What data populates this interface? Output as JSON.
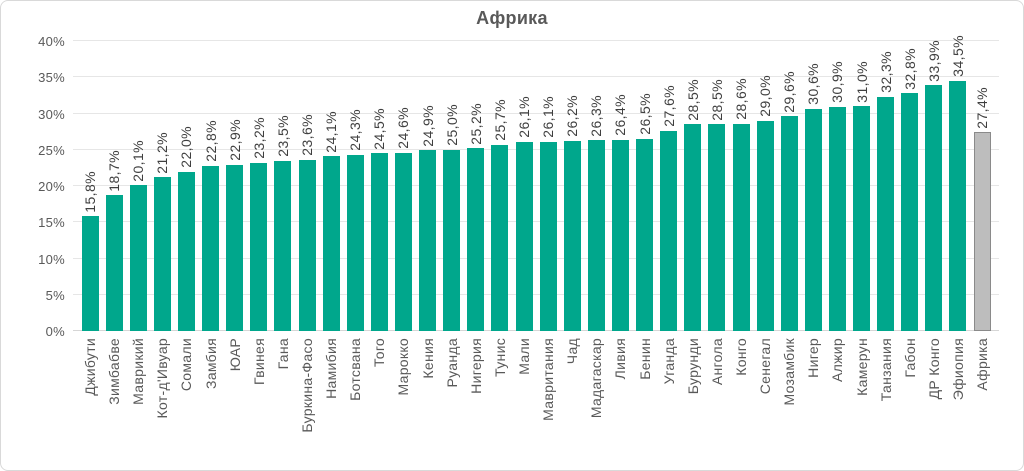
{
  "chart_data": {
    "type": "bar",
    "title": "Африка",
    "xlabel": "",
    "ylabel": "",
    "ylim": [
      0,
      40
    ],
    "grid": true,
    "legend": false,
    "yticks": [
      {
        "value": 0,
        "label": "0%"
      },
      {
        "value": 5,
        "label": "5%"
      },
      {
        "value": 10,
        "label": "10%"
      },
      {
        "value": 15,
        "label": "15%"
      },
      {
        "value": 20,
        "label": "20%"
      },
      {
        "value": 25,
        "label": "25%"
      },
      {
        "value": 30,
        "label": "30%"
      },
      {
        "value": 35,
        "label": "35%"
      },
      {
        "value": 40,
        "label": "40%"
      }
    ],
    "points": [
      {
        "category": "Джибути",
        "value": 15.8,
        "label": "15,8%",
        "kind": "country"
      },
      {
        "category": "Зимбабве",
        "value": 18.7,
        "label": "18,7%",
        "kind": "country"
      },
      {
        "category": "Маврикий",
        "value": 20.1,
        "label": "20,1%",
        "kind": "country"
      },
      {
        "category": "Кот-д'Ивуар",
        "value": 21.2,
        "label": "21,2%",
        "kind": "country"
      },
      {
        "category": "Сомали",
        "value": 22.0,
        "label": "22,0%",
        "kind": "country"
      },
      {
        "category": "Замбия",
        "value": 22.8,
        "label": "22,8%",
        "kind": "country"
      },
      {
        "category": "ЮАР",
        "value": 22.9,
        "label": "22,9%",
        "kind": "country"
      },
      {
        "category": "Гвинея",
        "value": 23.2,
        "label": "23,2%",
        "kind": "country"
      },
      {
        "category": "Гана",
        "value": 23.5,
        "label": "23,5%",
        "kind": "country"
      },
      {
        "category": "Буркина-Фасо",
        "value": 23.6,
        "label": "23,6%",
        "kind": "country"
      },
      {
        "category": "Намибия",
        "value": 24.1,
        "label": "24,1%",
        "kind": "country"
      },
      {
        "category": "Ботсвана",
        "value": 24.3,
        "label": "24,3%",
        "kind": "country"
      },
      {
        "category": "Того",
        "value": 24.5,
        "label": "24,5%",
        "kind": "country"
      },
      {
        "category": "Марокко",
        "value": 24.6,
        "label": "24,6%",
        "kind": "country"
      },
      {
        "category": "Кения",
        "value": 24.9,
        "label": "24,9%",
        "kind": "country"
      },
      {
        "category": "Руанда",
        "value": 25.0,
        "label": "25,0%",
        "kind": "country"
      },
      {
        "category": "Нигерия",
        "value": 25.2,
        "label": "25,2%",
        "kind": "country"
      },
      {
        "category": "Тунис",
        "value": 25.7,
        "label": "25,7%",
        "kind": "country"
      },
      {
        "category": "Мали",
        "value": 26.1,
        "label": "26,1%",
        "kind": "country"
      },
      {
        "category": "Мавритания",
        "value": 26.1,
        "label": "26,1%",
        "kind": "country"
      },
      {
        "category": "Чад",
        "value": 26.2,
        "label": "26,2%",
        "kind": "country"
      },
      {
        "category": "Мадагаскар",
        "value": 26.3,
        "label": "26,3%",
        "kind": "country"
      },
      {
        "category": "Ливия",
        "value": 26.4,
        "label": "26,4%",
        "kind": "country"
      },
      {
        "category": "Бенин",
        "value": 26.5,
        "label": "26,5%",
        "kind": "country"
      },
      {
        "category": "Уганда",
        "value": 27.6,
        "label": "27,6%",
        "kind": "country"
      },
      {
        "category": "Бурунди",
        "value": 28.5,
        "label": "28,5%",
        "kind": "country"
      },
      {
        "category": "Ангола",
        "value": 28.5,
        "label": "28,5%",
        "kind": "country"
      },
      {
        "category": "Конго",
        "value": 28.6,
        "label": "28,6%",
        "kind": "country"
      },
      {
        "category": "Сенегал",
        "value": 29.0,
        "label": "29,0%",
        "kind": "country"
      },
      {
        "category": "Мозамбик",
        "value": 29.6,
        "label": "29,6%",
        "kind": "country"
      },
      {
        "category": "Нигер",
        "value": 30.6,
        "label": "30,6%",
        "kind": "country"
      },
      {
        "category": "Алжир",
        "value": 30.9,
        "label": "30,9%",
        "kind": "country"
      },
      {
        "category": "Камерун",
        "value": 31.0,
        "label": "31,0%",
        "kind": "country"
      },
      {
        "category": "Танзания",
        "value": 32.3,
        "label": "32,3%",
        "kind": "country"
      },
      {
        "category": "Габон",
        "value": 32.8,
        "label": "32,8%",
        "kind": "country"
      },
      {
        "category": "ДР Конго",
        "value": 33.9,
        "label": "33,9%",
        "kind": "country"
      },
      {
        "category": "Эфиопия",
        "value": 34.5,
        "label": "34,5%",
        "kind": "country"
      },
      {
        "category": "Африка",
        "value": 27.4,
        "label": "27,4%",
        "kind": "aggregate"
      }
    ]
  },
  "colors": {
    "bar": "#00a78c",
    "aggregate_bar": "#bdbdbd",
    "aggregate_bar_border": "#8a8a8a",
    "grid": "#e6e6e6",
    "zero_line": "#d6d6d6",
    "axis_text": "#595959",
    "value_text": "#3f3f3f",
    "title_text": "#595959",
    "frame_border": "#d9d9d9"
  }
}
